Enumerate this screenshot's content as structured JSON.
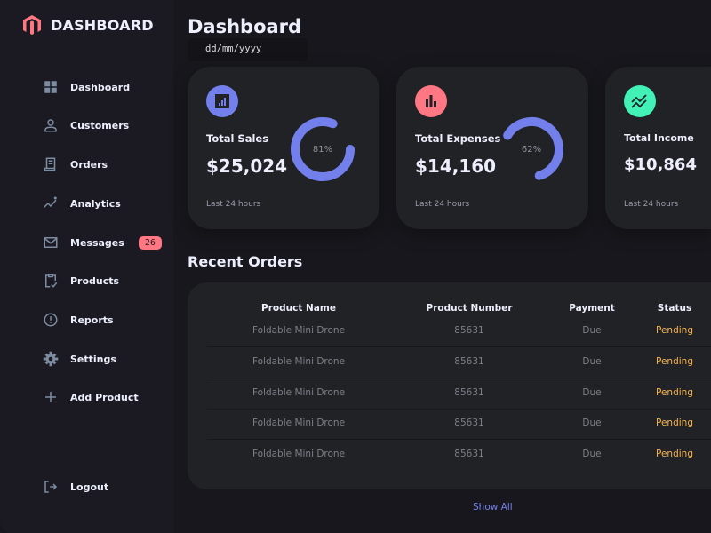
{
  "brand": {
    "name": "DASHBOARD",
    "color": "#ff7782"
  },
  "sidebar": {
    "items": [
      {
        "label": "Dashboard",
        "icon": "grid-icon"
      },
      {
        "label": "Customers",
        "icon": "person-icon"
      },
      {
        "label": "Orders",
        "icon": "receipt-icon"
      },
      {
        "label": "Analytics",
        "icon": "insights-icon"
      },
      {
        "label": "Messages",
        "icon": "mail-icon",
        "badge": "26"
      },
      {
        "label": "Products",
        "icon": "clipboard-check-icon"
      },
      {
        "label": "Reports",
        "icon": "alert-circle-icon"
      },
      {
        "label": "Settings",
        "icon": "gear-icon"
      },
      {
        "label": "Add Product",
        "icon": "plus-icon"
      }
    ],
    "logout": "Logout"
  },
  "header": {
    "title": "Dashboard",
    "date_placeholder": "dd/mm/yyyy"
  },
  "cards": [
    {
      "title": "Total Sales",
      "value": "$25,024",
      "percent": 81,
      "percent_label": "81%",
      "sub": "Last 24 hours",
      "color": "#7380ec"
    },
    {
      "title": "Total Expenses",
      "value": "$14,160",
      "percent": 62,
      "percent_label": "62%",
      "sub": "Last 24 hours",
      "color": "#ff7782"
    },
    {
      "title": "Total Income",
      "value": "$10,864",
      "sub": "Last 24 hours",
      "color": "#41f1b6"
    }
  ],
  "orders": {
    "title": "Recent Orders",
    "columns": [
      "Product Name",
      "Product Number",
      "Payment",
      "Status"
    ],
    "rows": [
      [
        "Foldable Mini Drone",
        "85631",
        "Due",
        "Pending"
      ],
      [
        "Foldable Mini Drone",
        "85631",
        "Due",
        "Pending"
      ],
      [
        "Foldable Mini Drone",
        "85631",
        "Due",
        "Pending"
      ],
      [
        "Foldable Mini Drone",
        "85631",
        "Due",
        "Pending"
      ],
      [
        "Foldable Mini Drone",
        "85631",
        "Due",
        "Pending"
      ]
    ],
    "show_all": "Show All"
  }
}
